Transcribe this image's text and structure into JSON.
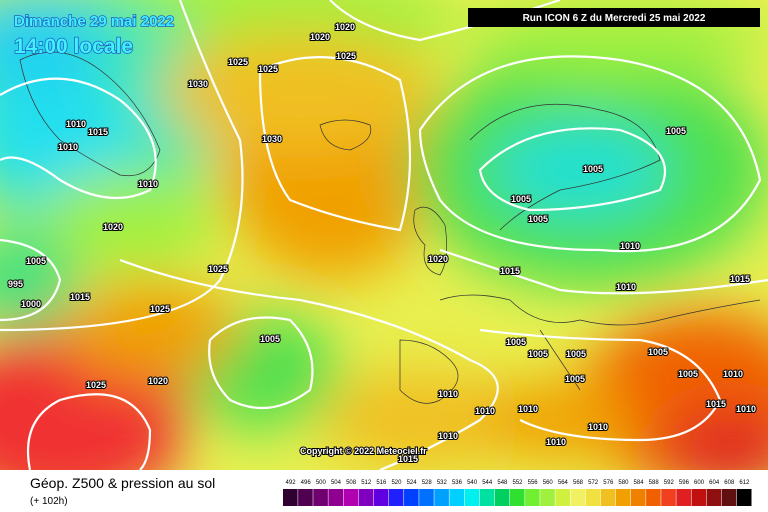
{
  "header": {
    "date": "Dimanche 29 mai 2022",
    "time": "14:00 locale",
    "run": "Run ICON 6 Z du Mercredi 25 mai 2022"
  },
  "map": {
    "copyright": "Copyright © 2022 Meteociel.fr",
    "isobar_labels": [
      "1020",
      "1020",
      "1025",
      "1025",
      "1025",
      "1030",
      "1010",
      "1015",
      "1010",
      "1010",
      "1030",
      "1020",
      "1005",
      "995",
      "1000",
      "1015",
      "1025",
      "1025",
      "1005",
      "1025",
      "1020",
      "1020",
      "1015",
      "1005",
      "1005",
      "1005",
      "1010",
      "1005",
      "1010",
      "1015",
      "1005",
      "1005",
      "1005",
      "1005",
      "1005",
      "1010",
      "1010",
      "1010",
      "1010",
      "1010",
      "1010",
      "1015",
      "1005",
      "1010",
      "1015",
      "1010"
    ]
  },
  "footer": {
    "title": "Géop. Z500 & pression au sol",
    "subtitle": "(+ 102h)",
    "scale": [
      492,
      496,
      500,
      504,
      508,
      512,
      516,
      520,
      524,
      528,
      532,
      536,
      540,
      544,
      548,
      552,
      556,
      560,
      564,
      568,
      572,
      576,
      580,
      584,
      588,
      592,
      596,
      600,
      604,
      608,
      612
    ],
    "scale_colors": [
      "#300030",
      "#500050",
      "#700070",
      "#900090",
      "#b000b0",
      "#8000c0",
      "#6000e0",
      "#2020ff",
      "#0040ff",
      "#0070ff",
      "#00a0ff",
      "#00d0ff",
      "#00f0f0",
      "#00e0a0",
      "#00d060",
      "#30e030",
      "#70f030",
      "#a0f040",
      "#d0f040",
      "#f0f060",
      "#f0e040",
      "#f0c020",
      "#f0a000",
      "#f08000",
      "#f06000",
      "#f04020",
      "#e02020",
      "#c01010",
      "#901010",
      "#601010",
      "#000000"
    ]
  }
}
